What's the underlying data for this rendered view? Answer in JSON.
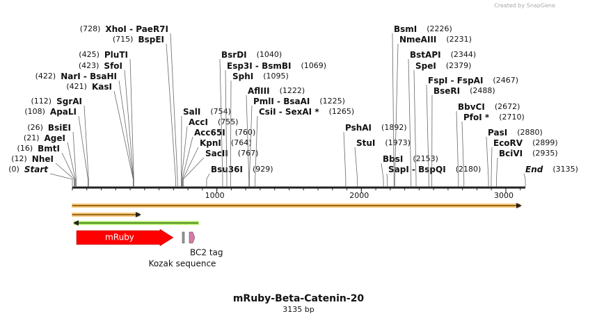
{
  "watermark": "Created by SnapGene",
  "title": "mRuby-Beta-Catenin-20",
  "subtitle": "3135 bp",
  "ruler": {
    "ticks": [
      1000,
      2000,
      3000
    ]
  },
  "sites": [
    {
      "name": "Start",
      "pos": {
        "value": 0,
        "label": "(0)"
      },
      "side": "left",
      "italic": true
    },
    {
      "name": "NheI",
      "pos": {
        "value": 12,
        "label": "(12)"
      },
      "side": "left"
    },
    {
      "name": "BmtI",
      "pos": {
        "value": 16,
        "label": "(16)"
      },
      "side": "left"
    },
    {
      "name": "AgeI",
      "pos": {
        "value": 21,
        "label": "(21)"
      },
      "side": "left"
    },
    {
      "name": "BsiEI",
      "pos": {
        "value": 26,
        "label": "(26)"
      },
      "side": "left"
    },
    {
      "name": "ApaLI",
      "pos": {
        "value": 108,
        "label": "(108)"
      },
      "side": "left"
    },
    {
      "name": "SgrAI",
      "pos": {
        "value": 112,
        "label": "(112)"
      },
      "side": "left"
    },
    {
      "name": "KasI",
      "pos": {
        "value": 421,
        "label": "(421)"
      },
      "side": "left"
    },
    {
      "name": "NarI - BsaHI",
      "pos": {
        "value": 422,
        "label": "(422)"
      },
      "side": "left"
    },
    {
      "name": "SfoI",
      "pos": {
        "value": 423,
        "label": "(423)"
      },
      "side": "left"
    },
    {
      "name": "PluTI",
      "pos": {
        "value": 425,
        "label": "(425)"
      },
      "side": "left"
    },
    {
      "name": "BspEI",
      "pos": {
        "value": 715,
        "label": "(715)"
      },
      "side": "left"
    },
    {
      "name": "XhoI - PaeR7I",
      "pos": {
        "value": 728,
        "label": "(728)"
      },
      "side": "left"
    },
    {
      "name": "SalI",
      "pos": {
        "value": 754,
        "label": "(754)"
      },
      "side": "right"
    },
    {
      "name": "AccI",
      "pos": {
        "value": 755,
        "label": "(755)"
      },
      "side": "right"
    },
    {
      "name": "Acc65I",
      "pos": {
        "value": 760,
        "label": "(760)"
      },
      "side": "right"
    },
    {
      "name": "KpnI",
      "pos": {
        "value": 764,
        "label": "(764)"
      },
      "side": "right"
    },
    {
      "name": "SacII",
      "pos": {
        "value": 767,
        "label": "(767)"
      },
      "side": "right"
    },
    {
      "name": "Bsu36I",
      "pos": {
        "value": 929,
        "label": "(929)"
      },
      "side": "right"
    },
    {
      "name": "BsrDI",
      "pos": {
        "value": 1040,
        "label": "(1040)"
      },
      "side": "right"
    },
    {
      "name": "Esp3I - BsmBI",
      "pos": {
        "value": 1069,
        "label": "(1069)"
      },
      "side": "right"
    },
    {
      "name": "SphI",
      "pos": {
        "value": 1095,
        "label": "(1095)"
      },
      "side": "right"
    },
    {
      "name": "AflIII",
      "pos": {
        "value": 1222,
        "label": "(1222)"
      },
      "side": "right"
    },
    {
      "name": "PmlI - BsaAI",
      "pos": {
        "value": 1225,
        "label": "(1225)"
      },
      "side": "right"
    },
    {
      "name": "CsiI - SexAI *",
      "pos": {
        "value": 1265,
        "label": "(1265)"
      },
      "side": "right"
    },
    {
      "name": "PshAI",
      "pos": {
        "value": 1892,
        "label": "(1892)"
      },
      "side": "right"
    },
    {
      "name": "StuI",
      "pos": {
        "value": 1973,
        "label": "(1973)"
      },
      "side": "right"
    },
    {
      "name": "BbsI",
      "pos": {
        "value": 2153,
        "label": "(2153)"
      },
      "side": "right"
    },
    {
      "name": "SapI - BspQI",
      "pos": {
        "value": 2180,
        "label": "(2180)"
      },
      "side": "right"
    },
    {
      "name": "BsmI",
      "pos": {
        "value": 2226,
        "label": "(2226)"
      },
      "side": "right"
    },
    {
      "name": "NmeAIII",
      "pos": {
        "value": 2231,
        "label": "(2231)"
      },
      "side": "right"
    },
    {
      "name": "BstAPI",
      "pos": {
        "value": 2344,
        "label": "(2344)"
      },
      "side": "right"
    },
    {
      "name": "SpeI",
      "pos": {
        "value": 2379,
        "label": "(2379)"
      },
      "side": "right"
    },
    {
      "name": "FspI - FspAI",
      "pos": {
        "value": 2467,
        "label": "(2467)"
      },
      "side": "right"
    },
    {
      "name": "BseRI",
      "pos": {
        "value": 2488,
        "label": "(2488)"
      },
      "side": "right"
    },
    {
      "name": "BbvCI",
      "pos": {
        "value": 2672,
        "label": "(2672)"
      },
      "side": "right"
    },
    {
      "name": "PfoI *",
      "pos": {
        "value": 2710,
        "label": "(2710)"
      },
      "side": "right"
    },
    {
      "name": "PasI",
      "pos": {
        "value": 2880,
        "label": "(2880)"
      },
      "side": "right"
    },
    {
      "name": "EcoRV",
      "pos": {
        "value": 2899,
        "label": "(2899)"
      },
      "side": "right"
    },
    {
      "name": "BciVI",
      "pos": {
        "value": 2935,
        "label": "(2935)"
      },
      "side": "right"
    },
    {
      "name": "End",
      "pos": {
        "value": 3135,
        "label": "(3135)"
      },
      "side": "right",
      "italic": true
    }
  ],
  "features": [
    "mRuby",
    "Kozak sequence",
    "BC2 tag"
  ]
}
